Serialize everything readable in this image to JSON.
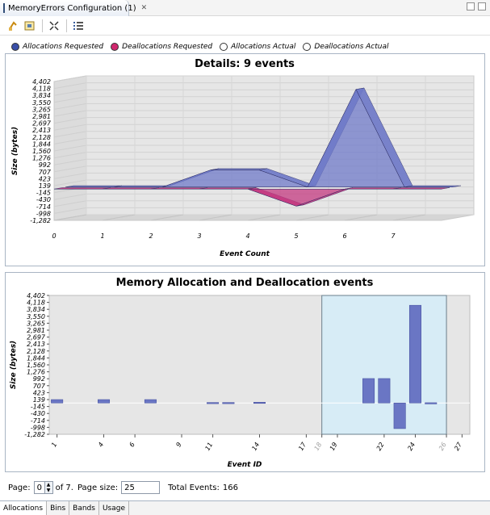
{
  "window": {
    "tab_title": "MemoryErrors Configuration (1)",
    "close_glyph": "✕"
  },
  "toolbar": {
    "icons": [
      "refresh-icon",
      "export-icon",
      "zoom-fit-icon",
      "list-icon"
    ]
  },
  "legend": [
    {
      "label": "Allocations Requested",
      "color": "#3a4fa8",
      "filled": true
    },
    {
      "label": "Deallocations Requested",
      "color": "#d0286e",
      "filled": true
    },
    {
      "label": "Allocations Actual",
      "color": "#ffffff",
      "filled": false
    },
    {
      "label": "Deallocations Actual",
      "color": "#ffffff",
      "filled": false
    }
  ],
  "chart_data": [
    {
      "type": "area",
      "title": "Details: 9 events",
      "xlabel": "Event Count",
      "ylabel": "Size (bytes)",
      "xlim": [
        0,
        8
      ],
      "ylim": [
        -1282,
        4402
      ],
      "y_ticks": [
        "4,402",
        "4,118",
        "3,834",
        "3,550",
        "3,265",
        "2,981",
        "2,697",
        "2,413",
        "2,128",
        "1,844",
        "1,560",
        "1,276",
        "992",
        "707",
        "423",
        "139",
        "-145",
        "-430",
        "-714",
        "-998",
        "-1,282"
      ],
      "x_ticks": [
        "0",
        "1",
        "2",
        "3",
        "4",
        "5",
        "6",
        "7"
      ],
      "x": [
        0,
        1,
        2,
        3,
        4,
        5,
        6,
        7,
        8
      ],
      "series": [
        {
          "name": "Allocations Requested",
          "color": "#6f7ac8",
          "values": [
            0,
            0,
            0,
            700,
            700,
            0,
            4000,
            0,
            0
          ]
        },
        {
          "name": "Deallocations Requested",
          "color": "#c43a80",
          "values": [
            0,
            0,
            0,
            0,
            0,
            -700,
            0,
            0,
            0
          ]
        }
      ],
      "grid": true
    },
    {
      "type": "bar",
      "title": "Memory Allocation and Deallocation events",
      "xlabel": "Event ID",
      "ylabel": "Size (bytes)",
      "xlim": [
        1,
        27
      ],
      "ylim": [
        -1282,
        4402
      ],
      "y_ticks": [
        "4,402",
        "4,118",
        "3,834",
        "3,550",
        "3,265",
        "2,981",
        "2,697",
        "2,413",
        "2,128",
        "1,844",
        "1,560",
        "1,276",
        "992",
        "707",
        "423",
        "139",
        "-145",
        "-430",
        "-714",
        "-998",
        "-1,282"
      ],
      "x_ticks": [
        "1",
        "4",
        "6",
        "9",
        "11",
        "14",
        "17",
        "18",
        "19",
        "22",
        "24",
        "26",
        "27"
      ],
      "x_tick_values": [
        1,
        4,
        6,
        9,
        11,
        14,
        17,
        18,
        19,
        22,
        24,
        26,
        27
      ],
      "faded_ticks": [
        "18",
        "26"
      ],
      "bars": [
        {
          "x": 1,
          "value": 139
        },
        {
          "x": 4,
          "value": 139
        },
        {
          "x": 7,
          "value": 139
        },
        {
          "x": 11,
          "value": 20
        },
        {
          "x": 12,
          "value": 20
        },
        {
          "x": 14,
          "value": 30
        },
        {
          "x": 21,
          "value": 1000
        },
        {
          "x": 22,
          "value": 1000
        },
        {
          "x": 23,
          "value": -1050
        },
        {
          "x": 24,
          "value": 4000
        },
        {
          "x": 25,
          "value": 10
        }
      ],
      "bar_color": "#6a76c4",
      "highlight_range": [
        18,
        26
      ],
      "highlight_color": "#d7ecf6",
      "grid": false
    }
  ],
  "pager": {
    "page_label": "Page:",
    "page_value": "0",
    "of_text": "of 7.",
    "size_label": "Page size:",
    "size_value": "25",
    "total_label": "Total Events:",
    "total_value": "166"
  },
  "bottom_tabs": [
    "Allocations",
    "Bins",
    "Bands",
    "Usage"
  ]
}
